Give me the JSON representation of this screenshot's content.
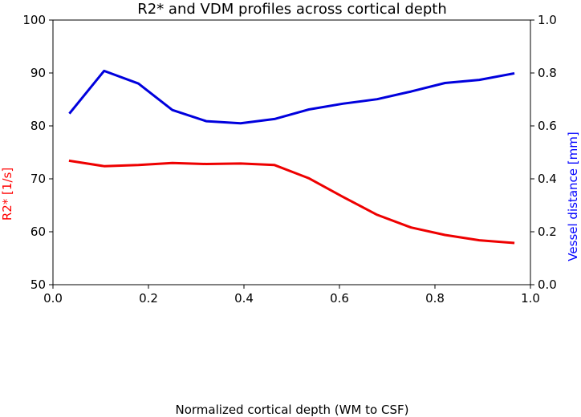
{
  "chart_data": {
    "type": "line",
    "title": "R2* and VDM profiles across cortical depth",
    "xlabel": "Normalized cortical depth (WM to CSF)",
    "xlim": [
      0.0,
      1.0
    ],
    "xticks": [
      0.0,
      0.2,
      0.4,
      0.6,
      0.8,
      1.0
    ],
    "xtick_labels": [
      "0.0",
      "0.2",
      "0.4",
      "0.6",
      "0.8",
      "1.0"
    ],
    "left_axis": {
      "label": "R2* [1/s]",
      "color": "#ff0000",
      "lim": [
        50,
        100
      ],
      "ticks": [
        50,
        60,
        70,
        80,
        90,
        100
      ],
      "tick_labels": [
        "50",
        "60",
        "70",
        "80",
        "90",
        "100"
      ]
    },
    "right_axis": {
      "label": "Vessel distance [mm]",
      "color": "#0000ff",
      "lim": [
        0.0,
        1.0
      ],
      "ticks": [
        0.0,
        0.2,
        0.4,
        0.6,
        0.8,
        1.0
      ],
      "tick_labels": [
        "0.0",
        "0.2",
        "0.4",
        "0.6",
        "0.8",
        "1.0"
      ]
    },
    "x": [
      0.036,
      0.107,
      0.179,
      0.25,
      0.321,
      0.393,
      0.464,
      0.536,
      0.607,
      0.679,
      0.75,
      0.821,
      0.893,
      0.964
    ],
    "series": [
      {
        "name": "R2*",
        "axis": "left",
        "color": "#ee0000",
        "values": [
          73.4,
          72.4,
          72.6,
          73.0,
          72.8,
          72.9,
          72.6,
          70.1,
          66.6,
          63.2,
          60.8,
          59.4,
          58.4,
          57.9
        ]
      },
      {
        "name": "Vessel distance",
        "axis": "right",
        "color": "#0000dd",
        "values": [
          0.65,
          0.808,
          0.76,
          0.66,
          0.618,
          0.61,
          0.626,
          0.662,
          0.684,
          0.701,
          0.73,
          0.762,
          0.774,
          0.798
        ]
      }
    ]
  }
}
